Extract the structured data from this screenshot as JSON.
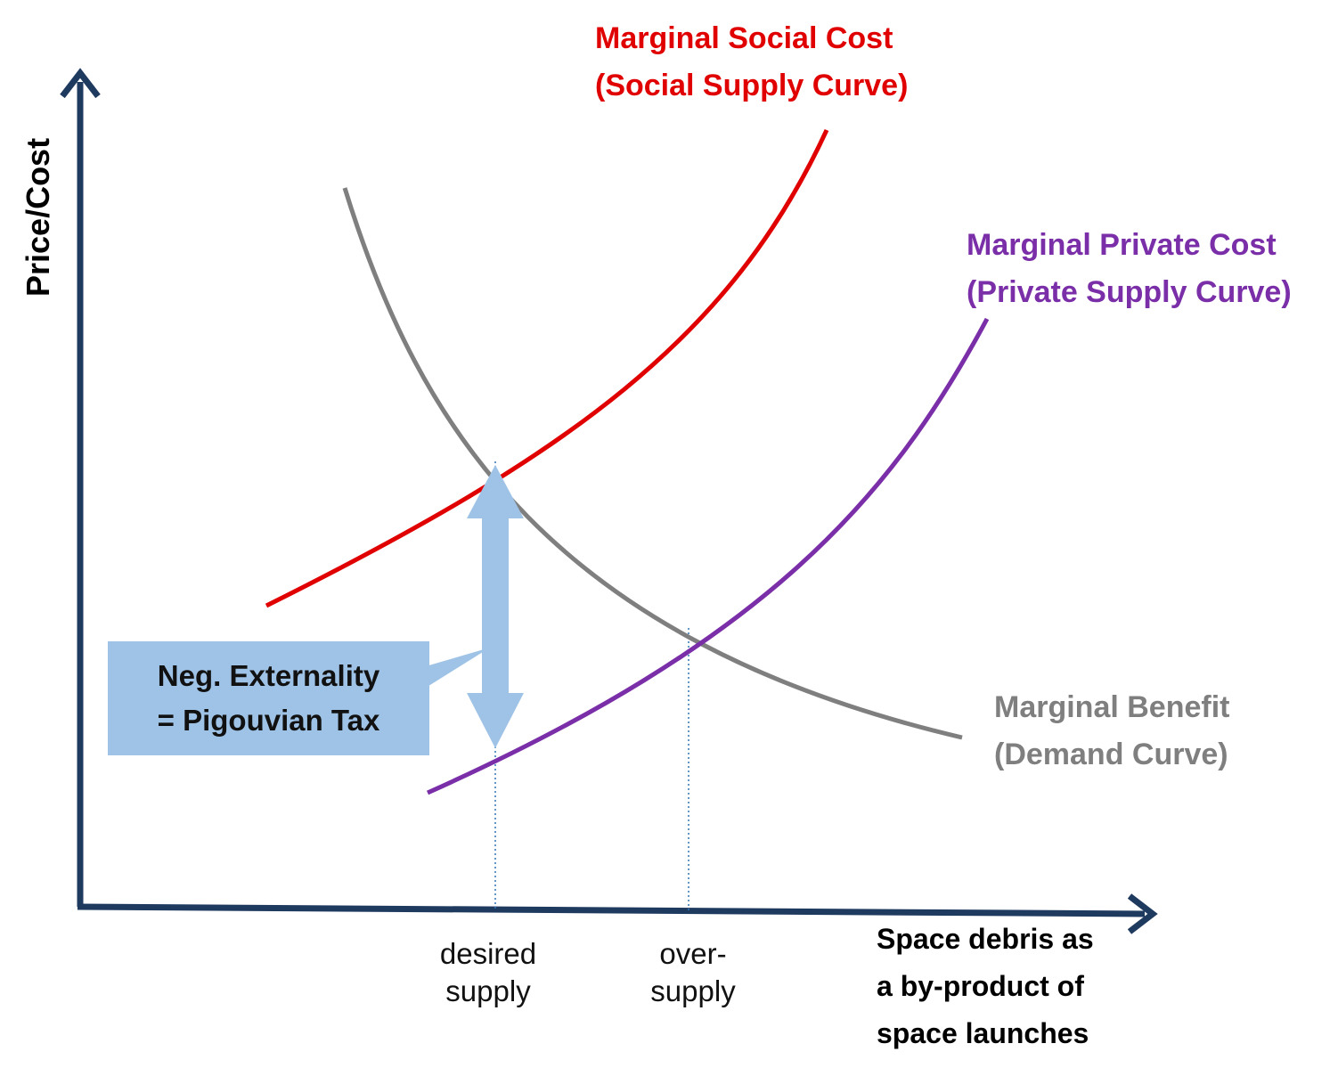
{
  "diagram": {
    "y_axis_label": "Price/Cost",
    "x_axis_label": [
      "Space debris as",
      "a by-product of",
      "space launches"
    ],
    "ticks": {
      "desired": [
        "desired",
        "supply"
      ],
      "over": [
        "over-",
        "supply"
      ]
    },
    "curves": {
      "social": {
        "line1": "Marginal Social Cost",
        "line2": "(Social Supply Curve)",
        "color": "#e00000"
      },
      "private": {
        "line1": "Marginal Private Cost",
        "line2": "(Private Supply Curve)",
        "color": "#7a2ea8"
      },
      "benefit": {
        "line1": "Marginal Benefit",
        "line2": "(Demand Curve)",
        "color": "#7f7f7f"
      }
    },
    "callout": {
      "line1": "Neg. Externality",
      "line2": "= Pigouvian Tax",
      "color": "#9fc3e6"
    },
    "axis_color": "#1f3a5f"
  }
}
